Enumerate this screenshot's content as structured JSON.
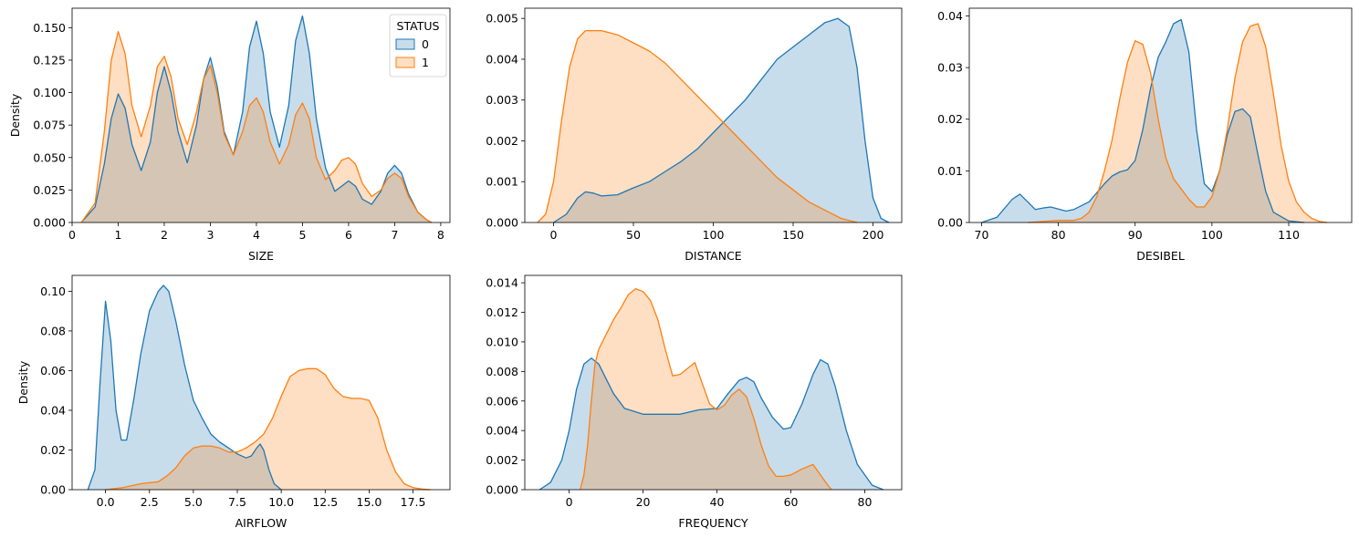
{
  "figure": {
    "legend_title": "STATUS",
    "legend_labels": [
      "0",
      "1"
    ],
    "colors": {
      "0": "#1f77b4",
      "1": "#ff7f0e"
    }
  },
  "chart_data": [
    {
      "type": "area",
      "xlabel": "SIZE",
      "ylabel": "Density",
      "xlim": [
        -0.0,
        8.2
      ],
      "ylim": [
        0,
        0.165
      ],
      "xticks": [
        0,
        1,
        2,
        3,
        4,
        5,
        6,
        7,
        8
      ],
      "yticks": [
        0.0,
        0.025,
        0.05,
        0.075,
        0.1,
        0.125,
        0.15
      ],
      "ytick_labels": [
        "0.000",
        "0.025",
        "0.050",
        "0.075",
        "0.100",
        "0.125",
        "0.150"
      ],
      "legend": "top-right",
      "series": [
        {
          "name": "0",
          "x": [
            0.2,
            0.5,
            0.7,
            0.85,
            1.0,
            1.15,
            1.3,
            1.5,
            1.7,
            1.85,
            2.0,
            2.15,
            2.3,
            2.5,
            2.7,
            2.85,
            3.0,
            3.15,
            3.3,
            3.5,
            3.7,
            3.85,
            4.0,
            4.15,
            4.3,
            4.5,
            4.7,
            4.85,
            5.0,
            5.15,
            5.3,
            5.5,
            5.7,
            5.85,
            6.0,
            6.15,
            6.3,
            6.5,
            6.7,
            6.85,
            7.0,
            7.15,
            7.3,
            7.5,
            7.7,
            7.8
          ],
          "y": [
            0.0,
            0.012,
            0.045,
            0.08,
            0.099,
            0.088,
            0.06,
            0.04,
            0.062,
            0.1,
            0.12,
            0.1,
            0.07,
            0.046,
            0.075,
            0.11,
            0.127,
            0.105,
            0.07,
            0.052,
            0.085,
            0.135,
            0.155,
            0.13,
            0.085,
            0.058,
            0.09,
            0.14,
            0.159,
            0.13,
            0.08,
            0.042,
            0.024,
            0.028,
            0.032,
            0.028,
            0.018,
            0.014,
            0.024,
            0.038,
            0.044,
            0.038,
            0.022,
            0.008,
            0.002,
            0.0
          ]
        },
        {
          "name": "1",
          "x": [
            0.2,
            0.5,
            0.7,
            0.85,
            1.0,
            1.15,
            1.3,
            1.5,
            1.7,
            1.85,
            2.0,
            2.15,
            2.3,
            2.5,
            2.7,
            2.85,
            3.0,
            3.15,
            3.3,
            3.5,
            3.7,
            3.85,
            4.0,
            4.15,
            4.3,
            4.5,
            4.7,
            4.85,
            5.0,
            5.15,
            5.3,
            5.5,
            5.7,
            5.85,
            6.0,
            6.15,
            6.3,
            6.5,
            6.7,
            6.85,
            7.0,
            7.15,
            7.3,
            7.5,
            7.7,
            7.8
          ],
          "y": [
            0.0,
            0.015,
            0.07,
            0.125,
            0.147,
            0.13,
            0.09,
            0.066,
            0.09,
            0.12,
            0.128,
            0.112,
            0.08,
            0.06,
            0.085,
            0.11,
            0.121,
            0.1,
            0.068,
            0.052,
            0.07,
            0.09,
            0.096,
            0.085,
            0.062,
            0.045,
            0.06,
            0.083,
            0.092,
            0.08,
            0.05,
            0.033,
            0.04,
            0.048,
            0.05,
            0.045,
            0.03,
            0.02,
            0.025,
            0.034,
            0.038,
            0.034,
            0.02,
            0.008,
            0.002,
            0.0
          ]
        }
      ]
    },
    {
      "type": "area",
      "xlabel": "DISTANCE",
      "ylabel": "",
      "xlim": [
        -18,
        218
      ],
      "ylim": [
        0,
        0.00525
      ],
      "xticks": [
        0,
        50,
        100,
        150,
        200
      ],
      "yticks": [
        0.0,
        0.001,
        0.002,
        0.003,
        0.004,
        0.005
      ],
      "ytick_labels": [
        "0.000",
        "0.001",
        "0.002",
        "0.003",
        "0.004",
        "0.005"
      ],
      "series": [
        {
          "name": "0",
          "x": [
            0,
            8,
            15,
            20,
            25,
            30,
            40,
            50,
            60,
            70,
            80,
            90,
            100,
            110,
            120,
            130,
            140,
            150,
            160,
            170,
            178,
            185,
            190,
            195,
            200,
            205,
            210
          ],
          "y": [
            0.0,
            0.0002,
            0.0006,
            0.00075,
            0.00072,
            0.00065,
            0.00068,
            0.00085,
            0.001,
            0.00125,
            0.0015,
            0.0018,
            0.0022,
            0.0026,
            0.003,
            0.0035,
            0.004,
            0.0043,
            0.0046,
            0.0049,
            0.005,
            0.0048,
            0.0038,
            0.002,
            0.0006,
            0.0001,
            0.0
          ]
        },
        {
          "name": "1",
          "x": [
            -10,
            -5,
            0,
            5,
            10,
            15,
            20,
            30,
            40,
            50,
            60,
            70,
            80,
            90,
            100,
            110,
            120,
            130,
            140,
            150,
            160,
            170,
            180,
            190
          ],
          "y": [
            0.0,
            0.0002,
            0.001,
            0.0025,
            0.0038,
            0.0045,
            0.0047,
            0.0047,
            0.0046,
            0.0044,
            0.0042,
            0.0039,
            0.0035,
            0.0031,
            0.0027,
            0.0023,
            0.0019,
            0.0015,
            0.0011,
            0.0008,
            0.0005,
            0.0003,
            0.0001,
            0.0
          ]
        }
      ]
    },
    {
      "type": "area",
      "xlabel": "DESIBEL",
      "ylabel": "",
      "xlim": [
        68.4,
        118.2
      ],
      "ylim": [
        0,
        0.0415
      ],
      "xticks": [
        70,
        80,
        90,
        100,
        110
      ],
      "yticks": [
        0.0,
        0.01,
        0.02,
        0.03,
        0.04
      ],
      "ytick_labels": [
        "0.00",
        "0.01",
        "0.02",
        "0.03",
        "0.04"
      ],
      "series": [
        {
          "name": "0",
          "x": [
            70,
            72,
            74,
            75,
            76,
            77,
            78,
            79,
            80,
            81,
            82,
            84,
            86,
            87,
            88,
            89,
            90,
            91,
            92,
            93,
            94,
            95,
            96,
            97,
            98,
            99,
            100,
            101,
            102,
            103,
            104,
            105,
            106,
            107,
            108,
            110,
            112
          ],
          "y": [
            0.0,
            0.001,
            0.0045,
            0.0055,
            0.004,
            0.0025,
            0.0028,
            0.003,
            0.0026,
            0.0022,
            0.0025,
            0.004,
            0.0075,
            0.009,
            0.0098,
            0.0102,
            0.012,
            0.018,
            0.026,
            0.032,
            0.035,
            0.0385,
            0.0393,
            0.033,
            0.018,
            0.0075,
            0.006,
            0.01,
            0.017,
            0.0215,
            0.022,
            0.0205,
            0.013,
            0.006,
            0.002,
            0.0003,
            0.0
          ]
        },
        {
          "name": "1",
          "x": [
            76,
            78,
            80,
            82,
            83,
            84,
            85,
            86,
            87,
            88,
            89,
            90,
            91,
            92,
            93,
            94,
            95,
            96,
            97,
            98,
            99,
            100,
            101,
            102,
            103,
            104,
            105,
            106,
            107,
            108,
            109,
            110,
            111,
            112,
            113,
            114,
            115
          ],
          "y": [
            0.0,
            0.0002,
            0.0004,
            0.0004,
            0.0008,
            0.002,
            0.005,
            0.01,
            0.016,
            0.024,
            0.031,
            0.0352,
            0.0345,
            0.029,
            0.02,
            0.0125,
            0.0085,
            0.0065,
            0.0045,
            0.003,
            0.003,
            0.005,
            0.01,
            0.018,
            0.028,
            0.035,
            0.038,
            0.0385,
            0.034,
            0.025,
            0.015,
            0.008,
            0.004,
            0.002,
            0.0008,
            0.0002,
            0.0
          ]
        }
      ]
    },
    {
      "type": "area",
      "xlabel": "AIRFLOW",
      "ylabel": "Density",
      "xlim": [
        -1.9,
        19.6
      ],
      "ylim": [
        0,
        0.108
      ],
      "xticks": [
        0.0,
        2.5,
        5.0,
        7.5,
        10.0,
        12.5,
        15.0,
        17.5
      ],
      "xtick_labels": [
        "0.0",
        "2.5",
        "5.0",
        "7.5",
        "10.0",
        "12.5",
        "15.0",
        "17.5"
      ],
      "yticks": [
        0.0,
        0.02,
        0.04,
        0.06,
        0.08,
        0.1
      ],
      "ytick_labels": [
        "0.00",
        "0.02",
        "0.04",
        "0.06",
        "0.08",
        "0.10"
      ],
      "series": [
        {
          "name": "0",
          "x": [
            -1,
            -0.6,
            -0.3,
            0,
            0.3,
            0.6,
            0.9,
            1.2,
            1.6,
            2,
            2.5,
            3,
            3.3,
            3.6,
            4,
            4.5,
            5,
            5.5,
            6,
            6.5,
            7,
            7.5,
            8,
            8.3,
            8.6,
            8.8,
            9,
            9.3,
            9.6,
            10
          ],
          "y": [
            0.0,
            0.01,
            0.055,
            0.095,
            0.075,
            0.04,
            0.025,
            0.025,
            0.045,
            0.068,
            0.09,
            0.1,
            0.103,
            0.1,
            0.085,
            0.063,
            0.045,
            0.036,
            0.028,
            0.024,
            0.021,
            0.018,
            0.016,
            0.017,
            0.021,
            0.023,
            0.02,
            0.01,
            0.003,
            0.0
          ]
        },
        {
          "name": "1",
          "x": [
            0,
            1,
            2,
            2.5,
            3,
            3.5,
            4,
            4.5,
            5,
            5.5,
            6,
            6.5,
            7,
            7.5,
            8,
            8.5,
            9,
            9.5,
            10,
            10.5,
            11,
            11.5,
            12,
            12.5,
            13,
            13.5,
            14,
            14.5,
            15,
            15.5,
            16,
            16.5,
            17,
            17.5,
            18,
            18.5
          ],
          "y": [
            0.0,
            0.001,
            0.003,
            0.0035,
            0.004,
            0.007,
            0.011,
            0.017,
            0.021,
            0.022,
            0.022,
            0.021,
            0.019,
            0.019,
            0.021,
            0.024,
            0.028,
            0.036,
            0.047,
            0.057,
            0.06,
            0.061,
            0.061,
            0.058,
            0.051,
            0.047,
            0.046,
            0.046,
            0.045,
            0.036,
            0.02,
            0.009,
            0.003,
            0.001,
            0.0003,
            0.0
          ]
        }
      ]
    },
    {
      "type": "area",
      "xlabel": "FREQUENCY",
      "ylabel": "",
      "xlim": [
        -12,
        90
      ],
      "ylim": [
        0,
        0.0145
      ],
      "xticks": [
        0,
        20,
        40,
        60,
        80
      ],
      "yticks": [
        0.0,
        0.002,
        0.004,
        0.006,
        0.008,
        0.01,
        0.012,
        0.014
      ],
      "ytick_labels": [
        "0.000",
        "0.002",
        "0.004",
        "0.006",
        "0.008",
        "0.010",
        "0.012",
        "0.014"
      ],
      "series": [
        {
          "name": "0",
          "x": [
            -8,
            -5,
            -2,
            0,
            2,
            4,
            6,
            8,
            10,
            12,
            15,
            20,
            25,
            30,
            35,
            40,
            43,
            46,
            48,
            50,
            52,
            55,
            58,
            60,
            63,
            66,
            68,
            70,
            72,
            75,
            78,
            82,
            85
          ],
          "y": [
            0.0,
            0.0005,
            0.002,
            0.004,
            0.0068,
            0.0085,
            0.0089,
            0.0085,
            0.0075,
            0.0065,
            0.0055,
            0.0051,
            0.0051,
            0.0051,
            0.0054,
            0.0055,
            0.0065,
            0.0074,
            0.0076,
            0.0073,
            0.0062,
            0.0049,
            0.0041,
            0.0042,
            0.0058,
            0.0078,
            0.0088,
            0.0085,
            0.007,
            0.004,
            0.0017,
            0.0003,
            0.0
          ]
        },
        {
          "name": "1",
          "x": [
            3,
            4,
            5,
            6,
            7,
            8,
            10,
            12,
            14,
            16,
            18,
            20,
            22,
            24,
            26,
            28,
            30,
            32,
            34,
            36,
            38,
            40,
            42,
            44,
            46,
            48,
            50,
            52,
            54,
            56,
            58,
            60,
            63,
            66,
            68,
            70,
            71
          ],
          "y": [
            0.0,
            0.001,
            0.003,
            0.006,
            0.0085,
            0.0095,
            0.0105,
            0.0115,
            0.0123,
            0.0132,
            0.0136,
            0.0134,
            0.0128,
            0.0115,
            0.0095,
            0.0077,
            0.0078,
            0.0082,
            0.0086,
            0.0072,
            0.0058,
            0.0054,
            0.0057,
            0.0064,
            0.0068,
            0.0063,
            0.0048,
            0.003,
            0.0016,
            0.0009,
            0.0009,
            0.001,
            0.0014,
            0.0017,
            0.001,
            0.0003,
            0.0
          ]
        }
      ]
    }
  ]
}
